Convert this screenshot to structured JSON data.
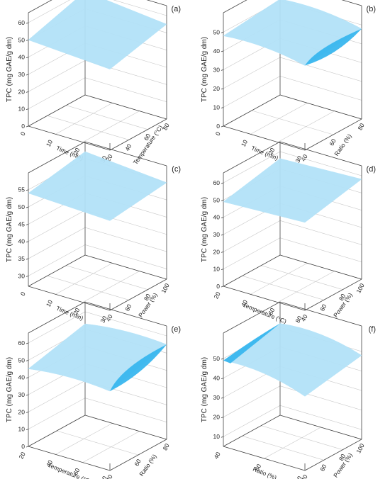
{
  "figure": {
    "colors": {
      "surface_light": "#b3e2f8",
      "surface_dark": "#39b6ee",
      "axis": "#444444",
      "grid": "#c8c8c8"
    }
  },
  "chart_data": [
    {
      "panel": "(a)",
      "type": "surface3d",
      "zlabel": "TPC (mg GAE/g dm)",
      "xlabel": "Time (min)",
      "xticks": [
        "0",
        "10",
        "20",
        "30"
      ],
      "ylabel": "Temperature (°C)",
      "yticks": [
        "20",
        "40",
        "60",
        "80"
      ],
      "zticks": [
        "0",
        "10",
        "20",
        "30",
        "40",
        "50",
        "60"
      ],
      "zlim": [
        0,
        60
      ],
      "surface": {
        "grid_rows": 2,
        "grid_cols": 2,
        "z": [
          [
            50,
            47
          ],
          [
            60,
            55
          ]
        ],
        "shape": "flat"
      }
    },
    {
      "panel": "(b)",
      "type": "surface3d",
      "zlabel": "TPC (mg GAE/g dm)",
      "xlabel": "Time (min)",
      "xticks": [
        "0",
        "10",
        "20",
        "30"
      ],
      "ylabel": "Ratio (%)",
      "yticks": [
        "40",
        "60",
        "80"
      ],
      "zticks": [
        "0",
        "10",
        "20",
        "30",
        "40",
        "50"
      ],
      "zlim": [
        0,
        55
      ],
      "surface": {
        "grid_rows": 2,
        "grid_cols": 2,
        "z": [
          [
            48,
            45
          ],
          [
            51,
            48
          ]
        ],
        "shape": "saddle"
      }
    },
    {
      "panel": "(c)",
      "type": "surface3d",
      "zlabel": "TPC (mg GAE/g dm)",
      "xlabel": "Time (min)",
      "xticks": [
        "0",
        "10",
        "20",
        "30"
      ],
      "ylabel": "Power (%)",
      "yticks": [
        "40",
        "60",
        "80",
        "100"
      ],
      "zticks": [
        "30",
        "35",
        "40",
        "45",
        "50",
        "55"
      ],
      "zlim": [
        27,
        57
      ],
      "surface": {
        "grid_rows": 2,
        "grid_cols": 2,
        "z": [
          [
            54,
            53
          ],
          [
            57,
            55
          ]
        ],
        "shape": "flat"
      }
    },
    {
      "panel": "(d)",
      "type": "surface3d",
      "zlabel": "TPC (mg GAE/g dm)",
      "xlabel": "Temperature (°C)",
      "xticks": [
        "20",
        "40",
        "60",
        "80"
      ],
      "ylabel": "Power (%)",
      "yticks": [
        "40",
        "60",
        "80",
        "100"
      ],
      "zticks": [
        "0",
        "10",
        "20",
        "30",
        "40",
        "50",
        "60"
      ],
      "zlim": [
        0,
        60
      ],
      "surface": {
        "grid_rows": 2,
        "grid_cols": 2,
        "z": [
          [
            49,
            51
          ],
          [
            56,
            58
          ]
        ],
        "shape": "flat"
      }
    },
    {
      "panel": "(e)",
      "type": "surface3d",
      "zlabel": "TPC (mg GAE/g dm)",
      "xlabel": "Temperature (°C)",
      "xticks": [
        "20",
        "40",
        "60",
        "80"
      ],
      "ylabel": "Ratio (%)",
      "yticks": [
        "40",
        "60",
        "80"
      ],
      "zticks": [
        "0",
        "10",
        "20",
        "30",
        "40",
        "50",
        "60"
      ],
      "zlim": [
        0,
        60
      ],
      "surface": {
        "grid_rows": 2,
        "grid_cols": 2,
        "z": [
          [
            45,
            46
          ],
          [
            53,
            55
          ]
        ],
        "shape": "ridge"
      }
    },
    {
      "panel": "(f)",
      "type": "surface3d",
      "zlabel": "TPC (mg GAE/g dm)",
      "xlabel": "Ratio (%)",
      "xticks": [
        "40",
        "60",
        "80"
      ],
      "ylabel": "Power (%)",
      "yticks": [
        "40",
        "60",
        "80",
        "100"
      ],
      "zticks": [
        "10",
        "20",
        "30",
        "40",
        "50"
      ],
      "zlim": [
        5,
        58
      ],
      "surface": {
        "grid_rows": 2,
        "grid_cols": 2,
        "z": [
          [
            49,
            43
          ],
          [
            52,
            48
          ]
        ],
        "shape": "dome"
      }
    }
  ]
}
